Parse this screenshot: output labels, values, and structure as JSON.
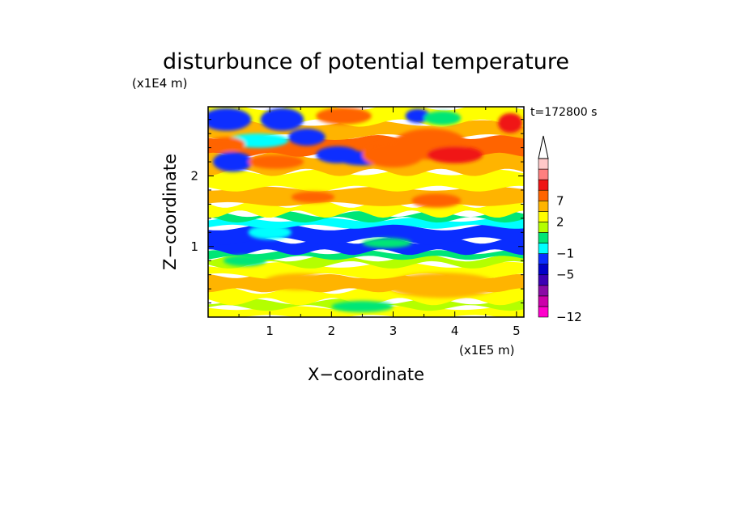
{
  "chart_data": {
    "type": "heatmap",
    "title": "disturbunce of potential temperature",
    "time_label": "t=172800 s",
    "xlabel": "X−coordinate",
    "ylabel": "Z−coordinate",
    "x_scale_label": "(x1E5 m)",
    "y_scale_label": "(x1E4 m)",
    "xlim": [
      0,
      5.12
    ],
    "ylim": [
      0,
      2.98
    ],
    "x_ticks": [
      1,
      2,
      3,
      4,
      5
    ],
    "y_ticks": [
      1,
      2
    ],
    "colorbar": {
      "levels": [
        -12,
        -11,
        -9,
        -7,
        -5,
        -3,
        -1,
        0,
        1,
        2,
        4,
        7,
        9,
        11
      ],
      "labels": [
        {
          "value": -12,
          "text": "−12"
        },
        {
          "value": -5,
          "text": "−5"
        },
        {
          "value": -1,
          "text": "−1"
        },
        {
          "value": 2,
          "text": "2"
        },
        {
          "value": 7,
          "text": "7"
        }
      ],
      "colors": [
        "#ff00cc",
        "#cc00aa",
        "#8a0aa6",
        "#3c00b4",
        "#0000c8",
        "#0a2dff",
        "#00ffff",
        "#00e676",
        "#b4ff00",
        "#ffff00",
        "#ffb400",
        "#ff6400",
        "#f01414",
        "#ff8080",
        "#ffc8c8"
      ],
      "extend": "max"
    },
    "bands": [
      {
        "z": [
          0.0,
          0.13
        ],
        "level": 1
      },
      {
        "z": [
          0.13,
          0.22
        ],
        "level": 0
      },
      {
        "z": [
          0.22,
          0.38
        ],
        "level": 1
      },
      {
        "z": [
          0.38,
          0.58
        ],
        "level": 2
      },
      {
        "z": [
          0.58,
          0.74
        ],
        "level": 1
      },
      {
        "z": [
          0.74,
          0.84
        ],
        "level": 0
      },
      {
        "z": [
          0.84,
          0.92
        ],
        "level": -1
      },
      {
        "z": [
          0.92,
          1.08
        ],
        "level": -5
      },
      {
        "z": [
          1.08,
          1.28
        ],
        "level": -5
      },
      {
        "z": [
          1.28,
          1.38
        ],
        "level": -3
      },
      {
        "z": [
          1.38,
          1.46
        ],
        "level": -1
      },
      {
        "z": [
          1.46,
          1.6
        ],
        "level": 1
      },
      {
        "z": [
          1.6,
          1.82
        ],
        "level": 2
      },
      {
        "z": [
          1.82,
          2.05
        ],
        "level": 1
      },
      {
        "z": [
          2.05,
          2.3
        ],
        "level": 2
      },
      {
        "z": [
          2.3,
          2.55
        ],
        "level": 4
      },
      {
        "z": [
          2.55,
          2.75
        ],
        "level": 2
      },
      {
        "z": [
          2.75,
          2.98
        ],
        "level": 1
      }
    ],
    "blobs": [
      {
        "x": 0.3,
        "z": 2.8,
        "rx": 0.4,
        "rz": 0.16,
        "level": -5
      },
      {
        "x": 0.4,
        "z": 2.2,
        "rx": 0.32,
        "rz": 0.14,
        "level": -5
      },
      {
        "x": 0.8,
        "z": 2.5,
        "rx": 0.5,
        "rz": 0.1,
        "level": -3
      },
      {
        "x": 1.2,
        "z": 2.8,
        "rx": 0.35,
        "rz": 0.16,
        "level": -5
      },
      {
        "x": 1.6,
        "z": 2.55,
        "rx": 0.3,
        "rz": 0.12,
        "level": -5
      },
      {
        "x": 2.1,
        "z": 2.3,
        "rx": 0.35,
        "rz": 0.12,
        "level": -5
      },
      {
        "x": 2.5,
        "z": 2.25,
        "rx": 0.4,
        "rz": 0.1,
        "level": -5
      },
      {
        "x": 3.4,
        "z": 2.85,
        "rx": 0.2,
        "rz": 0.1,
        "level": -5
      },
      {
        "x": 3.8,
        "z": 2.82,
        "rx": 0.3,
        "rz": 0.1,
        "level": -1
      },
      {
        "x": 0.3,
        "z": 2.45,
        "rx": 0.3,
        "rz": 0.1,
        "level": 4
      },
      {
        "x": 1.1,
        "z": 2.2,
        "rx": 0.45,
        "rz": 0.1,
        "level": 4
      },
      {
        "x": 3.0,
        "z": 2.3,
        "rx": 0.5,
        "rz": 0.18,
        "level": 4
      },
      {
        "x": 3.6,
        "z": 2.45,
        "rx": 0.6,
        "rz": 0.22,
        "level": 4
      },
      {
        "x": 4.0,
        "z": 2.3,
        "rx": 0.45,
        "rz": 0.12,
        "level": 7
      },
      {
        "x": 4.9,
        "z": 2.75,
        "rx": 0.2,
        "rz": 0.14,
        "level": 7
      },
      {
        "x": 2.2,
        "z": 2.85,
        "rx": 0.45,
        "rz": 0.12,
        "level": 4
      },
      {
        "x": 1.7,
        "z": 1.7,
        "rx": 0.35,
        "rz": 0.08,
        "level": 4
      },
      {
        "x": 3.7,
        "z": 1.65,
        "rx": 0.4,
        "rz": 0.1,
        "level": 4
      },
      {
        "x": 1.0,
        "z": 1.2,
        "rx": 0.35,
        "rz": 0.1,
        "level": -3
      },
      {
        "x": 2.9,
        "z": 1.05,
        "rx": 0.4,
        "rz": 0.07,
        "level": -1
      },
      {
        "x": 3.8,
        "z": 0.45,
        "rx": 0.9,
        "rz": 0.18,
        "level": 2
      },
      {
        "x": 1.5,
        "z": 0.5,
        "rx": 0.6,
        "rz": 0.12,
        "level": 2
      },
      {
        "x": 2.5,
        "z": 0.15,
        "rx": 0.5,
        "rz": 0.08,
        "level": -1
      },
      {
        "x": 0.6,
        "z": 0.8,
        "rx": 0.35,
        "rz": 0.08,
        "level": -1
      }
    ]
  }
}
